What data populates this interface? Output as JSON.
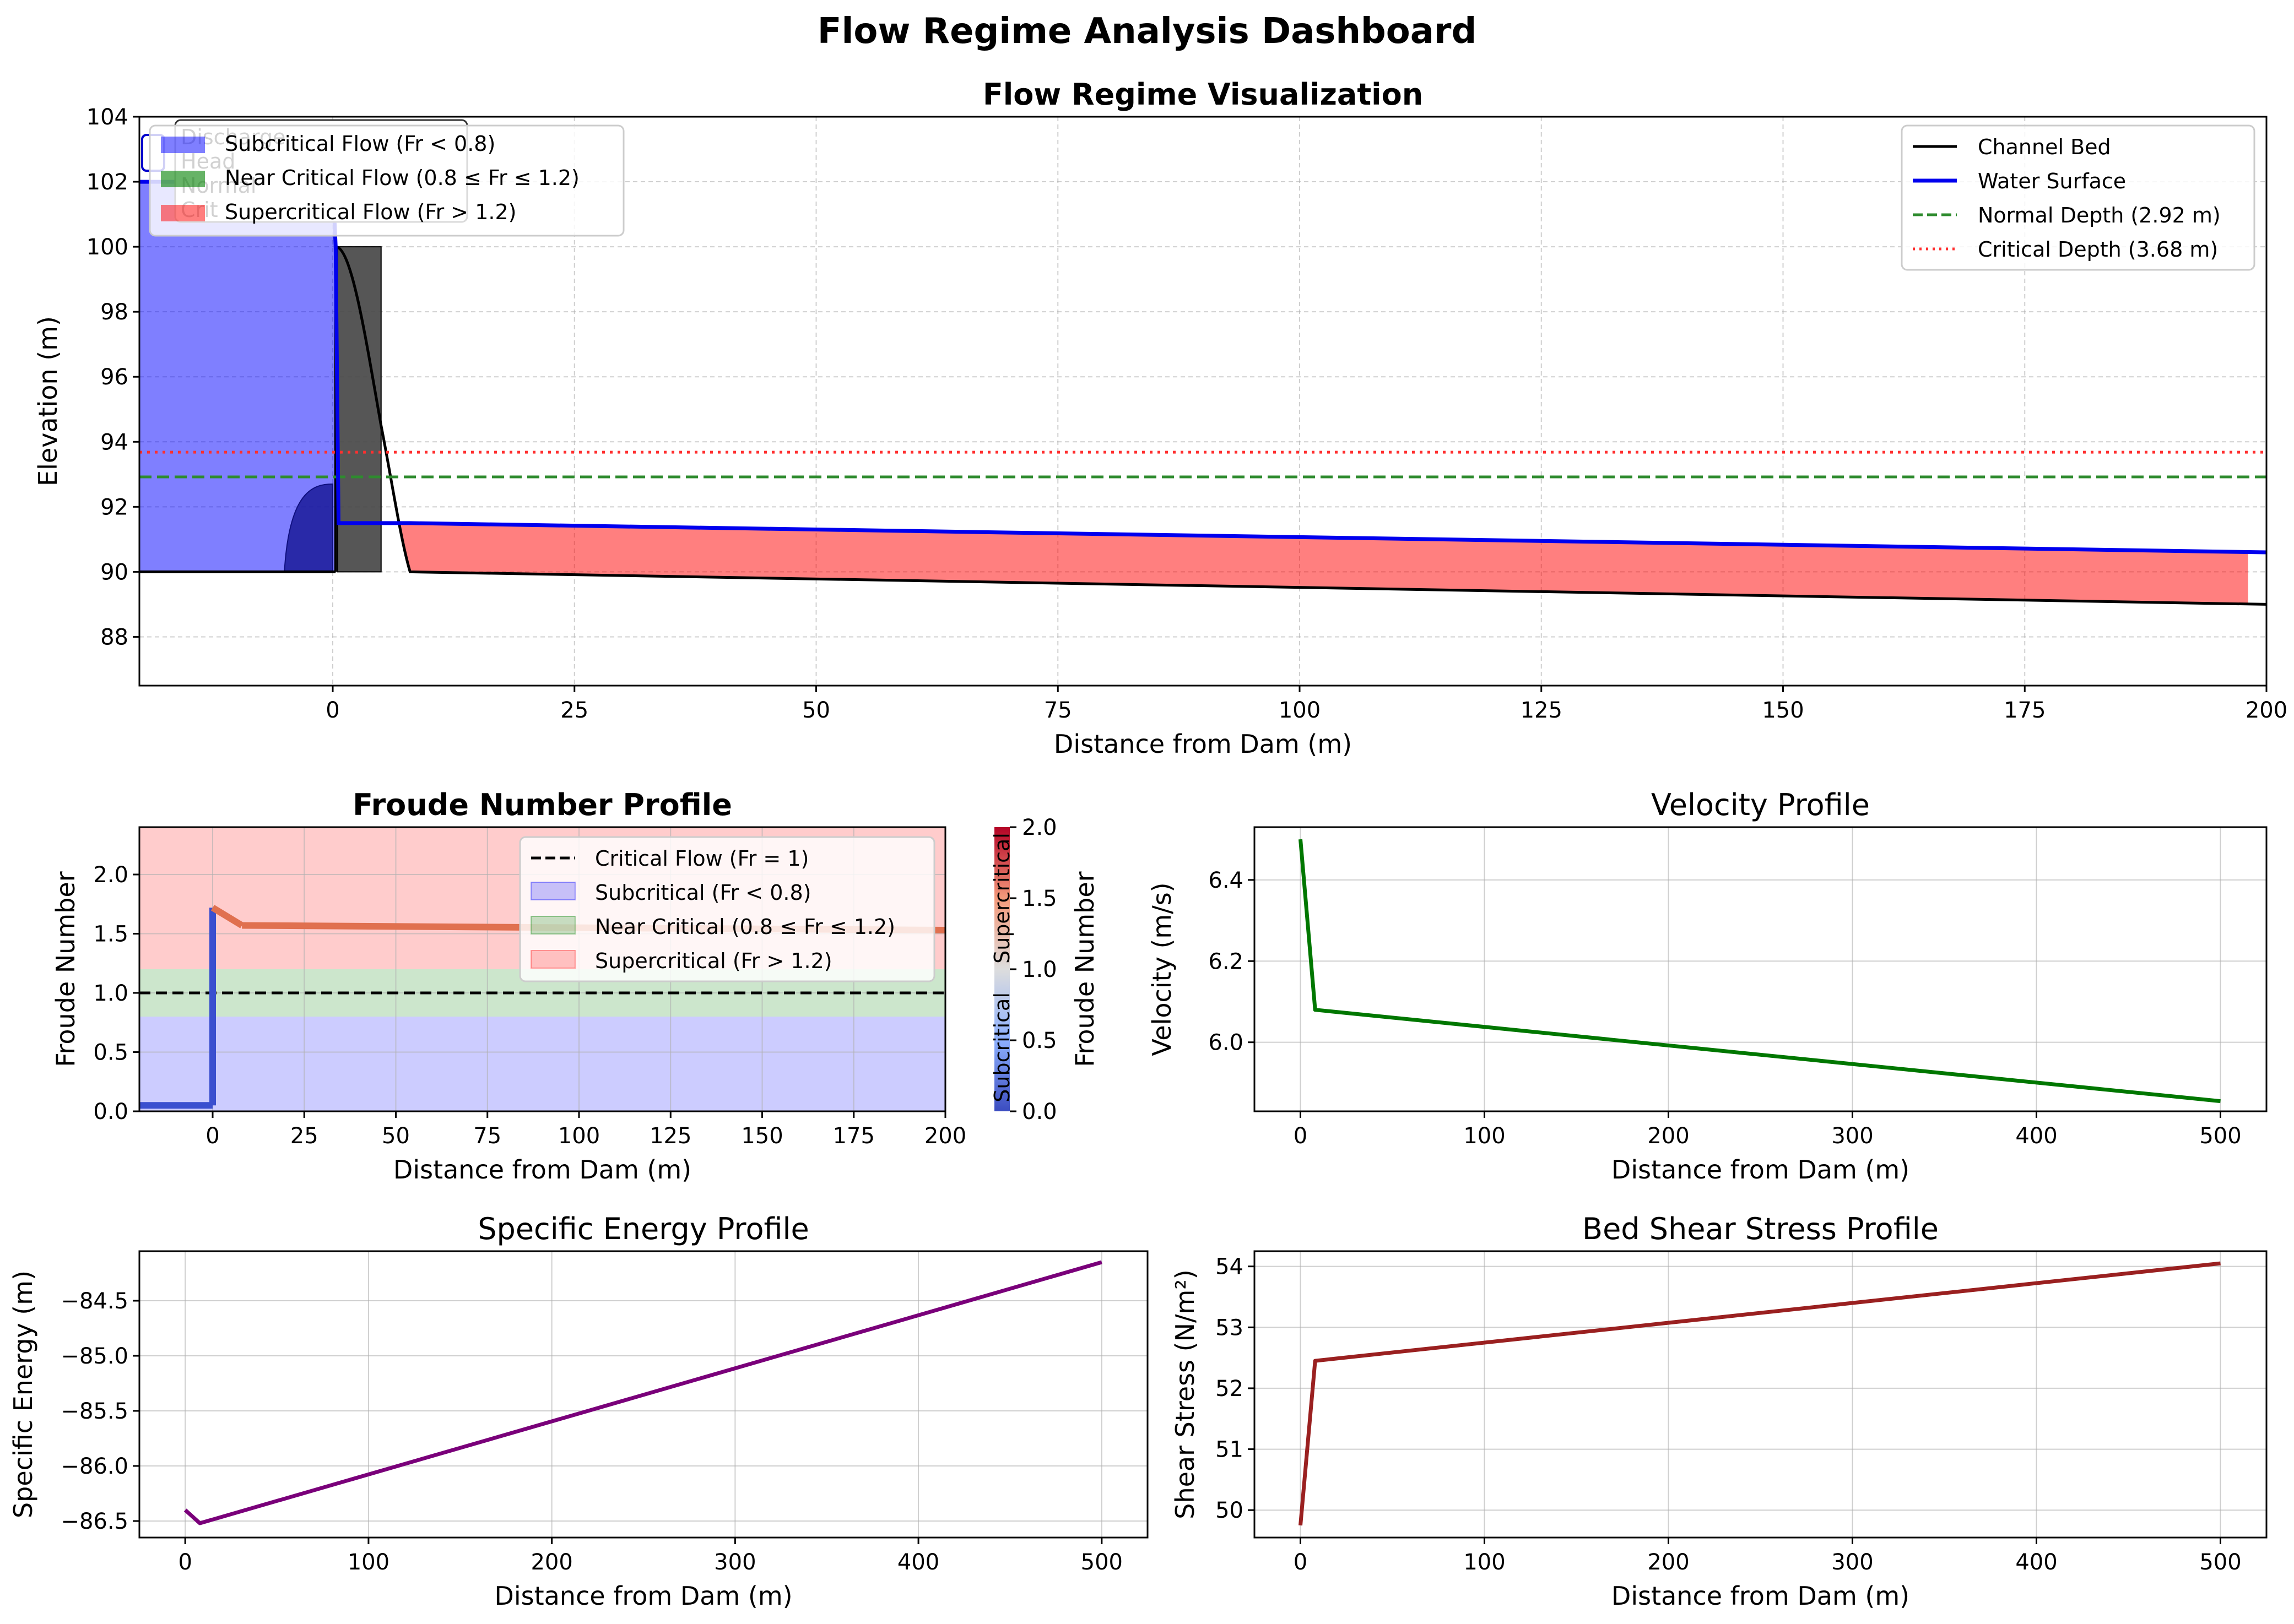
{
  "dashboard_title": "Flow Regime Analysis Dashboard",
  "colors": {
    "subcritical": "#0000ff",
    "near_critical": "#008000",
    "supercritical": "#ff0000",
    "water_surface": "#0000ee",
    "normal_depth": "#2e8b2e",
    "critical_depth": "#ff3030",
    "velocity": "#007700",
    "energy": "#7a007a",
    "shear": "#9a2020"
  },
  "chart_data": [
    {
      "id": "regime",
      "type": "area",
      "title": "Flow Regime Visualization",
      "xlabel": "Distance from Dam (m)",
      "ylabel": "Elevation (m)",
      "xlim": [
        -20,
        200
      ],
      "ylim": [
        86.5,
        104
      ],
      "xticks": [
        0,
        25,
        50,
        75,
        100,
        125,
        150,
        175,
        200
      ],
      "yticks": [
        88,
        90,
        92,
        94,
        96,
        98,
        100,
        102,
        104
      ],
      "grid": true,
      "legend_left": [
        {
          "label": "Subcritical Flow (Fr < 0.8)",
          "color": "subcritical"
        },
        {
          "label": "Near Critical Flow (0.8 ≤ Fr ≤ 1.2)",
          "color": "near_critical"
        },
        {
          "label": "Supercritical Flow (Fr > 1.2)",
          "color": "supercritical"
        }
      ],
      "legend_right": [
        {
          "label": "Channel Bed",
          "style": "solid",
          "color": "#000000"
        },
        {
          "label": "Water Surface",
          "style": "solid",
          "color": "water_surface"
        },
        {
          "label": "Normal Depth (2.92 m)",
          "style": "dashed",
          "color": "normal_depth"
        },
        {
          "label": "Critical Depth (3.68 m)",
          "style": "dotted",
          "color": "critical_depth"
        }
      ],
      "channel_bed": {
        "x": [
          -20,
          0,
          0.5,
          2,
          3.5,
          5,
          6.5,
          8,
          200
        ],
        "y": [
          90,
          90,
          100,
          99.2,
          97,
          94.5,
          92,
          90,
          89
        ]
      },
      "dam_block": {
        "x": [
          0.5,
          5
        ],
        "y": [
          90,
          100
        ]
      },
      "water_surface": {
        "x": [
          -20,
          0,
          0.3,
          0.6,
          8,
          200
        ],
        "y": [
          102,
          102,
          100,
          91.5,
          91.5,
          90.6
        ]
      },
      "normal_depth": 92.92,
      "critical_depth": 93.68,
      "hidden_box_text": [
        "Discharge",
        "Head",
        "Normal",
        "Crit"
      ]
    },
    {
      "id": "froude",
      "type": "line",
      "title": "Froude Number Profile",
      "xlabel": "Distance from Dam (m)",
      "ylabel": "Froude Number",
      "xlim": [
        -20,
        200
      ],
      "ylim": [
        0,
        2.4
      ],
      "xticks": [
        0,
        25,
        50,
        75,
        100,
        125,
        150,
        175,
        200
      ],
      "yticks": [
        0.0,
        0.5,
        1.0,
        1.5,
        2.0
      ],
      "critical_line": 1.0,
      "bands": [
        {
          "from": 0,
          "to": 0.8,
          "color": "subcritical"
        },
        {
          "from": 0.8,
          "to": 1.2,
          "color": "near_critical"
        },
        {
          "from": 1.2,
          "to": 2.4,
          "color": "supercritical"
        }
      ],
      "legend": [
        {
          "label": "Critical Flow (Fr = 1)",
          "style": "dashed"
        },
        {
          "label": "Subcritical (Fr < 0.8)",
          "color": "subcritical"
        },
        {
          "label": "Near Critical (0.8 ≤ Fr ≤ 1.2)",
          "color": "near_critical"
        },
        {
          "label": "Supercritical (Fr > 1.2)",
          "color": "supercritical"
        }
      ],
      "x": [
        -20,
        0,
        0,
        8,
        200
      ],
      "y": [
        0.05,
        0.05,
        1.72,
        1.57,
        1.53
      ],
      "colorbar": {
        "label": "Froude Number",
        "ticks": [
          0.0,
          0.5,
          1.0,
          1.5,
          2.0
        ],
        "range": [
          0,
          2
        ],
        "text_low": "Subcritical",
        "text_high": "Supercritical"
      }
    },
    {
      "id": "velocity",
      "type": "line",
      "title": "Velocity Profile",
      "xlabel": "Distance from Dam (m)",
      "ylabel": "Velocity (m/s)",
      "xlim": [
        -25,
        525
      ],
      "ylim": [
        5.83,
        6.53
      ],
      "xticks": [
        0,
        100,
        200,
        300,
        400,
        500
      ],
      "yticks": [
        6.0,
        6.2,
        6.4
      ],
      "x": [
        0,
        8,
        500
      ],
      "y": [
        6.5,
        6.08,
        5.855
      ]
    },
    {
      "id": "energy",
      "type": "line",
      "title": "Specific Energy Profile",
      "xlabel": "Distance from Dam (m)",
      "ylabel": "Specific Energy (m)",
      "xlim": [
        -25,
        525
      ],
      "ylim": [
        -86.65,
        -84.05
      ],
      "xticks": [
        0,
        100,
        200,
        300,
        400,
        500
      ],
      "yticks": [
        -86.5,
        -86.0,
        -85.5,
        -85.0,
        -84.5
      ],
      "x": [
        0,
        8,
        500
      ],
      "y": [
        -86.4,
        -86.52,
        -84.15
      ]
    },
    {
      "id": "shear",
      "type": "line",
      "title": "Bed Shear Stress Profile",
      "xlabel": "Distance from Dam (m)",
      "ylabel": "Shear Stress (N/m²)",
      "xlim": [
        -25,
        525
      ],
      "ylim": [
        49.55,
        54.25
      ],
      "xticks": [
        0,
        100,
        200,
        300,
        400,
        500
      ],
      "yticks": [
        50,
        51,
        52,
        53,
        54
      ],
      "x": [
        0,
        8,
        500
      ],
      "y": [
        49.75,
        52.45,
        54.05
      ]
    }
  ]
}
